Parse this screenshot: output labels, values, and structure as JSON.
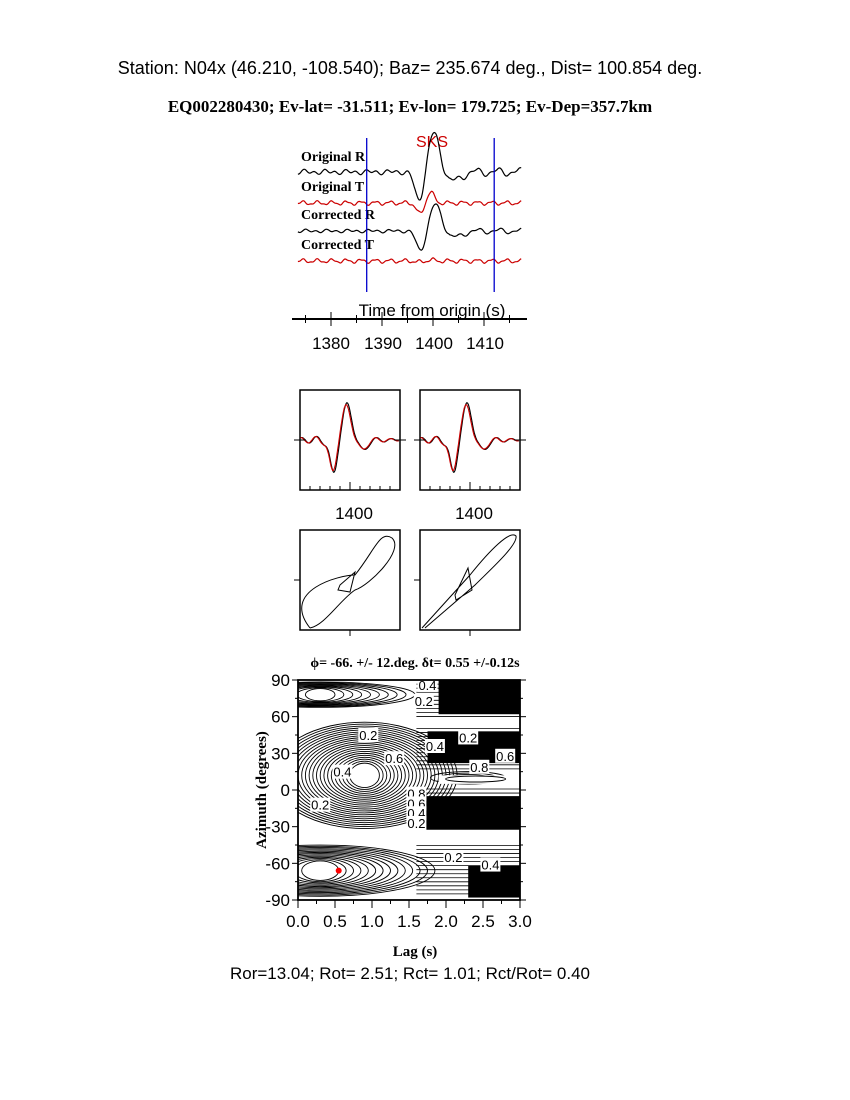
{
  "header": {
    "station_line": "Station: N04x (46.210, -108.540); Baz=  235.674 deg., Dist=  100.854 deg.",
    "event_line": "EQ002280430; Ev-lat= -31.511; Ev-lon= 179.725; Ev-Dep=357.7km"
  },
  "footer": {
    "ratios": "Ror=13.04; Rot= 2.51; Rct= 1.01; Rct/Rot= 0.40"
  },
  "colors": {
    "trace_black": "#000000",
    "trace_red": "#cc0000",
    "window_lines": "#0000cc",
    "best_point": "#ff0000"
  },
  "chart_data": [
    {
      "type": "line",
      "title": "",
      "phase_label": "SKS",
      "xlabel": "Time from origin (s)",
      "xticks": [
        "1380",
        "1390",
        "1400",
        "1410"
      ],
      "xlim": [
        1373,
        1418
      ],
      "window": [
        1387,
        1412
      ],
      "series": [
        {
          "name": "Original R",
          "color": "#000000"
        },
        {
          "name": "Original T",
          "color": "#cc0000"
        },
        {
          "name": "Corrected R",
          "color": "#000000"
        },
        {
          "name": "Corrected T",
          "color": "#cc0000"
        }
      ]
    },
    {
      "type": "line",
      "xticks": [
        "1400"
      ],
      "series": [
        {
          "color": "#000000"
        },
        {
          "color": "#cc0000"
        }
      ]
    },
    {
      "type": "line",
      "xticks": [
        "1400"
      ],
      "series": [
        {
          "color": "#000000"
        },
        {
          "color": "#cc0000"
        }
      ]
    },
    {
      "type": "line",
      "subtype": "particle-motion"
    },
    {
      "type": "line",
      "subtype": "particle-motion"
    },
    {
      "type": "heatmap",
      "subtype": "contour",
      "title": "ϕ= -66. +/- 12.deg. δt= 0.55 +/-0.12s",
      "xlabel": "Lag (s)",
      "ylabel": "Azimuth (degrees)",
      "xlim": [
        0,
        3
      ],
      "ylim": [
        -90,
        90
      ],
      "xticks": [
        "0.0",
        "0.5",
        "1.0",
        "1.5",
        "2.0",
        "2.5",
        "3.0"
      ],
      "yticks": [
        "90",
        "60",
        "30",
        "0",
        "-30",
        "-60",
        "-90"
      ],
      "best": {
        "lag": 0.55,
        "azimuth": -66
      },
      "contour_labels": [
        {
          "text": "0.4",
          "lag": 1.75,
          "az": 86
        },
        {
          "text": "0.2",
          "lag": 1.7,
          "az": 73
        },
        {
          "text": "0.2",
          "lag": 0.95,
          "az": 45
        },
        {
          "text": "0.4",
          "lag": 1.85,
          "az": 36
        },
        {
          "text": "0.2",
          "lag": 2.3,
          "az": 43
        },
        {
          "text": "0.6",
          "lag": 1.3,
          "az": 26
        },
        {
          "text": "0.6",
          "lag": 2.8,
          "az": 28
        },
        {
          "text": "0.8",
          "lag": 2.45,
          "az": 19
        },
        {
          "text": "0.4",
          "lag": 0.6,
          "az": 15
        },
        {
          "text": "0.8",
          "lag": 1.6,
          "az": -3
        },
        {
          "text": "0.6",
          "lag": 1.6,
          "az": -11
        },
        {
          "text": "0.4",
          "lag": 1.6,
          "az": -19
        },
        {
          "text": "0.2",
          "lag": 1.6,
          "az": -27
        },
        {
          "text": "0.2",
          "lag": 0.3,
          "az": -12
        },
        {
          "text": "0.2",
          "lag": 2.1,
          "az": -55
        },
        {
          "text": "0.4",
          "lag": 2.6,
          "az": -61
        }
      ]
    }
  ]
}
